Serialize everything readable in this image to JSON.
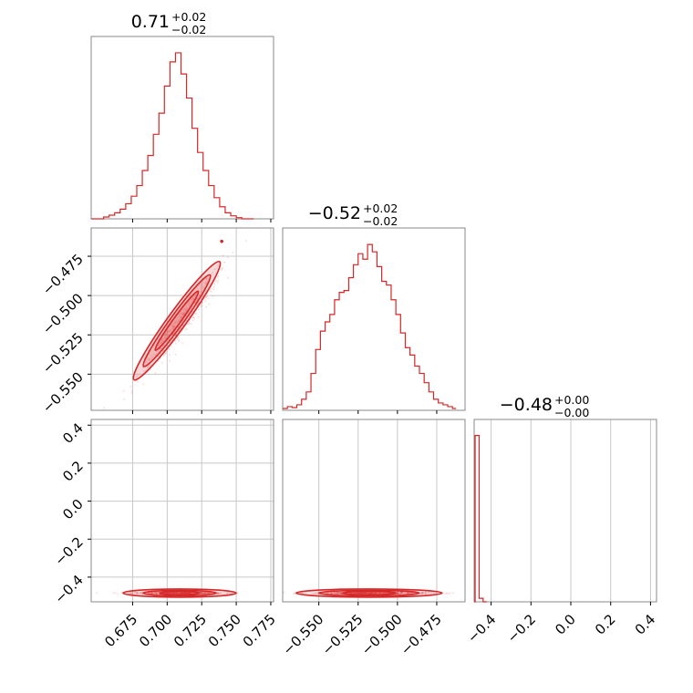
{
  "chart_data": {
    "type": "corner",
    "color": "#d62728",
    "grid": true,
    "panels": {
      "hist_0": {
        "type": "histogram",
        "title": {
          "value": "0.71",
          "plus": "+0.02",
          "minus": "−0.02"
        },
        "x_ticks": [],
        "x_range": [
          0.645,
          0.777
        ],
        "bins": [
          [
            0.645,
            0.0
          ],
          [
            0.65,
            0.0
          ],
          [
            0.654,
            0.006
          ],
          [
            0.658,
            0.012
          ],
          [
            0.662,
            0.02
          ],
          [
            0.666,
            0.032
          ],
          [
            0.67,
            0.05
          ],
          [
            0.674,
            0.075
          ],
          [
            0.678,
            0.11
          ],
          [
            0.682,
            0.16
          ],
          [
            0.686,
            0.21
          ],
          [
            0.69,
            0.28
          ],
          [
            0.694,
            0.35
          ],
          [
            0.698,
            0.44
          ],
          [
            0.702,
            0.52
          ],
          [
            0.706,
            0.55
          ],
          [
            0.71,
            0.48
          ],
          [
            0.714,
            0.4
          ],
          [
            0.718,
            0.3
          ],
          [
            0.722,
            0.22
          ],
          [
            0.726,
            0.16
          ],
          [
            0.73,
            0.11
          ],
          [
            0.734,
            0.07
          ],
          [
            0.738,
            0.04
          ],
          [
            0.742,
            0.02
          ],
          [
            0.746,
            0.01
          ],
          [
            0.75,
            0.004
          ],
          [
            0.754,
            0.0
          ],
          [
            0.76,
            0.0
          ]
        ],
        "y_max": 0.58
      },
      "hist_1": {
        "type": "histogram",
        "title": {
          "value": "−0.52",
          "plus": "+0.02",
          "minus": "−0.02"
        },
        "x_ticks": [],
        "x_range": [
          -0.573,
          -0.457
        ],
        "bins": [
          [
            -0.573,
            0.01
          ],
          [
            -0.57,
            0.02
          ],
          [
            -0.567,
            0.015
          ],
          [
            -0.564,
            0.03
          ],
          [
            -0.561,
            0.06
          ],
          [
            -0.558,
            0.1
          ],
          [
            -0.555,
            0.2
          ],
          [
            -0.552,
            0.33
          ],
          [
            -0.549,
            0.43
          ],
          [
            -0.546,
            0.48
          ],
          [
            -0.543,
            0.52
          ],
          [
            -0.54,
            0.6
          ],
          [
            -0.537,
            0.64
          ],
          [
            -0.534,
            0.65
          ],
          [
            -0.531,
            0.72
          ],
          [
            -0.528,
            0.79
          ],
          [
            -0.525,
            0.85
          ],
          [
            -0.522,
            0.82
          ],
          [
            -0.519,
            0.9
          ],
          [
            -0.516,
            0.86
          ],
          [
            -0.513,
            0.78
          ],
          [
            -0.51,
            0.7
          ],
          [
            -0.507,
            0.68
          ],
          [
            -0.504,
            0.6
          ],
          [
            -0.501,
            0.52
          ],
          [
            -0.498,
            0.42
          ],
          [
            -0.495,
            0.34
          ],
          [
            -0.492,
            0.3
          ],
          [
            -0.489,
            0.24
          ],
          [
            -0.486,
            0.2
          ],
          [
            -0.483,
            0.15
          ],
          [
            -0.48,
            0.1
          ],
          [
            -0.477,
            0.06
          ],
          [
            -0.474,
            0.04
          ],
          [
            -0.471,
            0.03
          ],
          [
            -0.468,
            0.02
          ],
          [
            -0.465,
            0.01
          ]
        ],
        "y_max": 0.95
      },
      "hist_2": {
        "type": "histogram",
        "title": {
          "value": "−0.48",
          "plus": "+0.00",
          "minus": "−0.00"
        },
        "x_ticks": [
          "−0.4",
          "−0.2",
          "0.0",
          "0.2",
          "0.4"
        ],
        "x_tick_values": [
          -0.4,
          -0.2,
          0.0,
          0.2,
          0.4
        ],
        "x_range": [
          -0.485,
          0.43
        ],
        "bins": [
          [
            -0.485,
            0.0
          ],
          [
            -0.48,
            0.95
          ],
          [
            -0.46,
            0.02
          ],
          [
            -0.44,
            0.0
          ]
        ],
        "y_max": 1.0
      },
      "scatter_1_0": {
        "type": "2d-density",
        "x_ticks": [
          "0.675",
          "0.700",
          "0.725",
          "0.750",
          "0.775"
        ],
        "x_tick_values": [
          0.675,
          0.7,
          0.725,
          0.75,
          0.775
        ],
        "y_ticks": [
          "−0.475",
          "−0.500",
          "−0.525",
          "−0.550"
        ],
        "y_tick_values": [
          -0.475,
          -0.5,
          -0.525,
          -0.55
        ],
        "x_range": [
          0.645,
          0.777
        ],
        "y_range": [
          -0.573,
          -0.457
        ]
      },
      "scatter_2_0": {
        "type": "2d-density",
        "x_ticks": [
          "0.675",
          "0.700",
          "0.725",
          "0.750",
          "0.775"
        ],
        "x_tick_values": [
          0.675,
          0.7,
          0.725,
          0.75,
          0.775
        ],
        "y_ticks": [
          "0.4",
          "0.2",
          "0.0",
          "−0.2",
          "−0.4"
        ],
        "y_tick_values": [
          0.4,
          0.2,
          0.0,
          -0.2,
          -0.4
        ],
        "x_range": [
          0.645,
          0.777
        ],
        "y_range": [
          -0.53,
          0.43
        ]
      },
      "scatter_2_1": {
        "type": "2d-density",
        "x_ticks": [
          "−0.550",
          "−0.525",
          "−0.500",
          "−0.475"
        ],
        "x_tick_values": [
          -0.55,
          -0.525,
          -0.5,
          -0.475
        ],
        "y_ticks": [],
        "x_range": [
          -0.573,
          -0.457
        ],
        "y_range": [
          -0.53,
          0.43
        ]
      }
    }
  }
}
